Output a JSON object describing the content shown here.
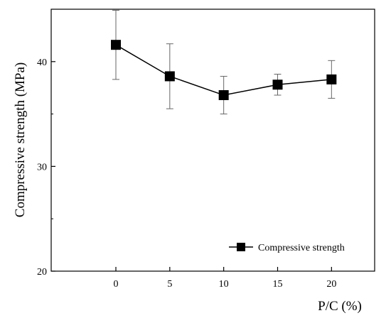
{
  "chart_data": {
    "type": "line",
    "title": "",
    "xlabel": "P/C (%)",
    "ylabel": "Compressive strength (MPa)",
    "x": [
      0,
      5,
      10,
      15,
      20
    ],
    "xticks": [
      "0",
      "5",
      "10",
      "15",
      "20"
    ],
    "yticks": [
      "20",
      "30",
      "40"
    ],
    "xlim": [
      -6,
      24
    ],
    "ylim": [
      20,
      45
    ],
    "grid": false,
    "legend": "bottom-right",
    "series": [
      {
        "name": "Compressive strength",
        "values": [
          41.6,
          38.6,
          36.8,
          37.8,
          38.3
        ],
        "error": [
          3.3,
          3.1,
          1.8,
          1.0,
          1.8
        ],
        "marker": "square",
        "color": "#000000"
      }
    ]
  }
}
